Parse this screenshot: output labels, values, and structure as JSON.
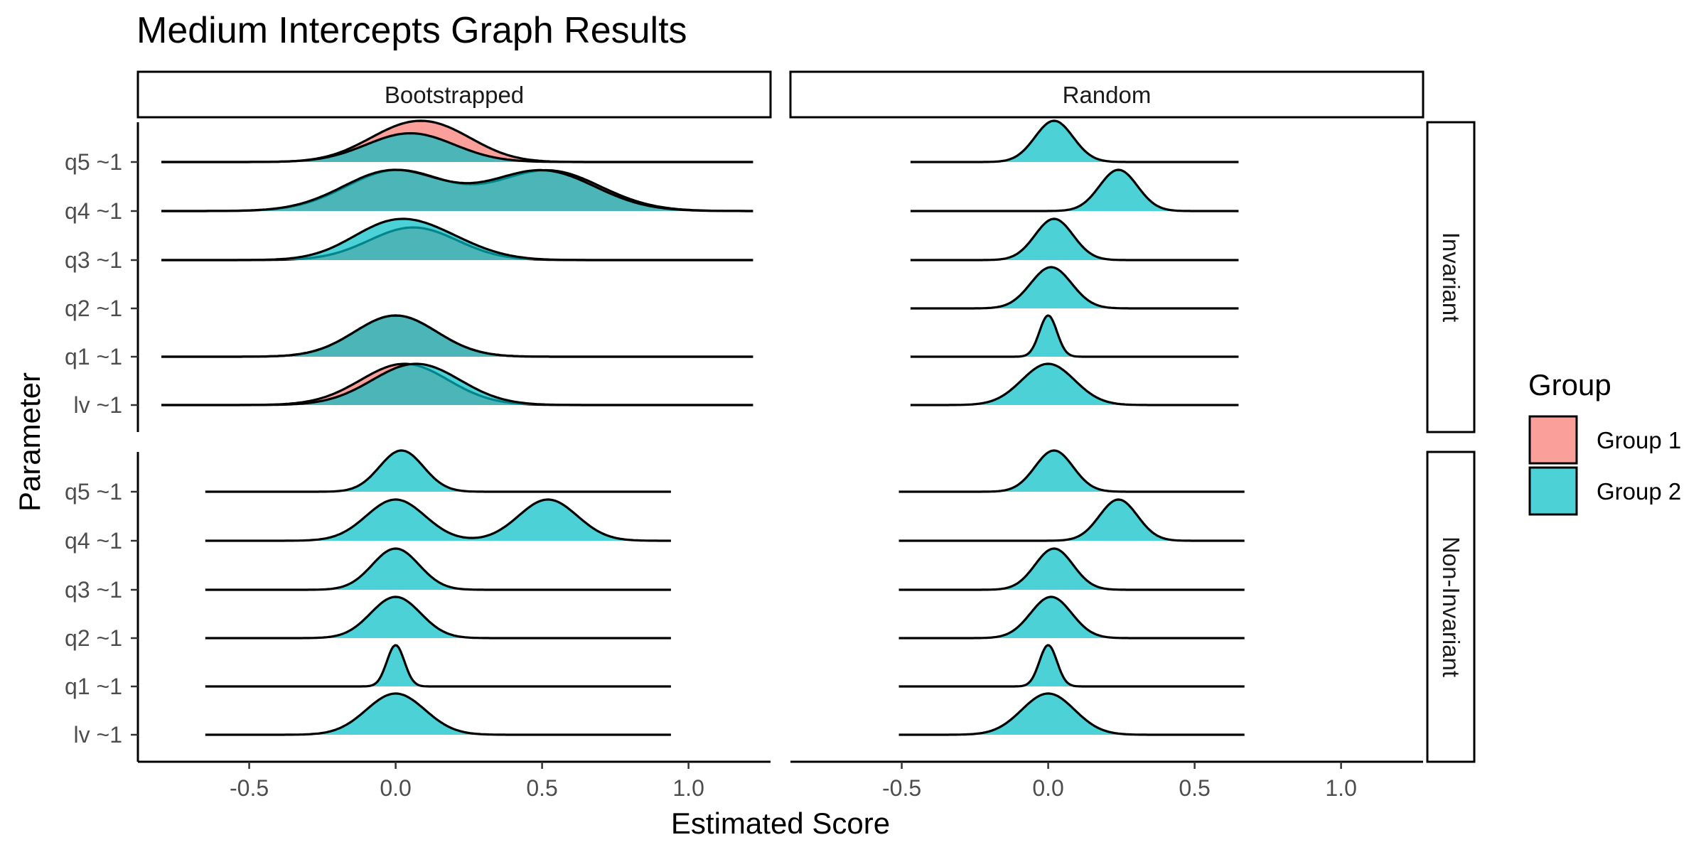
{
  "chart_data": {
    "type": "ridgeline",
    "title": "Medium Intercepts Graph Results",
    "xlabel": "Estimated Score",
    "ylabel": "Parameter",
    "xlim": [
      -0.88,
      1.28
    ],
    "x_ticks": [
      -0.5,
      0.0,
      0.5,
      1.0
    ],
    "x_tick_labels": [
      "-0.5",
      "0.0",
      "0.5",
      "1.0"
    ],
    "columns": [
      "Bootstrapped",
      "Random"
    ],
    "rows": [
      "Invariant",
      "Non-Invariant"
    ],
    "parameters": [
      "q5 ~1",
      "q4 ~1",
      "q3 ~1",
      "q2 ~1",
      "q1 ~1",
      "lv ~1"
    ],
    "legend": {
      "title": "Group",
      "entries": [
        {
          "name": "Group 1",
          "color": "#F8766D"
        },
        {
          "name": "Group 2",
          "color": "#00BFC4"
        }
      ]
    },
    "panels": [
      {
        "column": "Bootstrapped",
        "row": "Invariant",
        "ridges": [
          {
            "parameter": "q5 ~1",
            "range": [
              -0.8,
              1.22
            ],
            "groups": [
              {
                "group": "Group 1",
                "components": [
                  {
                    "w": 1,
                    "mu": 0.02,
                    "sd": 0.14
                  },
                  {
                    "w": 0.7,
                    "mu": 0.18,
                    "sd": 0.13
                  }
                ]
              },
              {
                "group": "Group 2",
                "components": [
                  {
                    "w": 1,
                    "mu": 0.05,
                    "sd": 0.15
                  }
                ]
              }
            ]
          },
          {
            "parameter": "q4 ~1",
            "range": [
              -0.8,
              1.22
            ],
            "groups": [
              {
                "group": "Group 1",
                "components": [
                  {
                    "w": 1,
                    "mu": 0.0,
                    "sd": 0.17
                  },
                  {
                    "w": 1,
                    "mu": 0.52,
                    "sd": 0.18
                  }
                ]
              },
              {
                "group": "Group 2",
                "components": [
                  {
                    "w": 1,
                    "mu": -0.01,
                    "sd": 0.17
                  },
                  {
                    "w": 1,
                    "mu": 0.5,
                    "sd": 0.18
                  }
                ]
              }
            ]
          },
          {
            "parameter": "q3 ~1",
            "range": [
              -0.8,
              1.22
            ],
            "groups": [
              {
                "group": "Group 1",
                "components": [
                  {
                    "w": 1,
                    "mu": 0.06,
                    "sd": 0.15
                  }
                ]
              },
              {
                "group": "Group 2",
                "components": [
                  {
                    "w": 1,
                    "mu": -0.02,
                    "sd": 0.14
                  },
                  {
                    "w": 0.5,
                    "mu": 0.16,
                    "sd": 0.14
                  }
                ]
              }
            ]
          },
          {
            "parameter": "q2 ~1",
            "range": null,
            "groups": []
          },
          {
            "parameter": "q1 ~1",
            "range": [
              -0.8,
              1.22
            ],
            "groups": [
              {
                "group": "Group 1",
                "components": [
                  {
                    "w": 1,
                    "mu": 0.0,
                    "sd": 0.14
                  }
                ]
              },
              {
                "group": "Group 2",
                "components": [
                  {
                    "w": 1,
                    "mu": 0.0,
                    "sd": 0.14
                  }
                ]
              }
            ]
          },
          {
            "parameter": "lv ~1",
            "range": [
              -0.8,
              1.22
            ],
            "groups": [
              {
                "group": "Group 1",
                "components": [
                  {
                    "w": 1,
                    "mu": 0.03,
                    "sd": 0.15
                  }
                ]
              },
              {
                "group": "Group 2",
                "components": [
                  {
                    "w": 1,
                    "mu": 0.07,
                    "sd": 0.15
                  }
                ]
              }
            ]
          }
        ]
      },
      {
        "column": "Random",
        "row": "Invariant",
        "ridges": [
          {
            "parameter": "q5 ~1",
            "range": [
              -0.47,
              0.65
            ],
            "groups": [
              {
                "group": "Group 2",
                "components": [
                  {
                    "w": 1,
                    "mu": 0.02,
                    "sd": 0.065
                  }
                ]
              }
            ]
          },
          {
            "parameter": "q4 ~1",
            "range": [
              -0.47,
              0.65
            ],
            "groups": [
              {
                "group": "Group 2",
                "components": [
                  {
                    "w": 1,
                    "mu": 0.24,
                    "sd": 0.065
                  }
                ]
              }
            ]
          },
          {
            "parameter": "q3 ~1",
            "range": [
              -0.47,
              0.65
            ],
            "groups": [
              {
                "group": "Group 2",
                "components": [
                  {
                    "w": 1,
                    "mu": 0.02,
                    "sd": 0.065
                  }
                ]
              }
            ]
          },
          {
            "parameter": "q2 ~1",
            "range": [
              -0.47,
              0.65
            ],
            "groups": [
              {
                "group": "Group 2",
                "components": [
                  {
                    "w": 1,
                    "mu": 0.01,
                    "sd": 0.07
                  }
                ]
              }
            ]
          },
          {
            "parameter": "q1 ~1",
            "range": [
              -0.47,
              0.65
            ],
            "groups": [
              {
                "group": "Group 2",
                "components": [
                  {
                    "w": 1,
                    "mu": 0.0,
                    "sd": 0.03
                  }
                ]
              }
            ]
          },
          {
            "parameter": "lv ~1",
            "range": [
              -0.47,
              0.65
            ],
            "groups": [
              {
                "group": "Group 2",
                "components": [
                  {
                    "w": 1,
                    "mu": 0.0,
                    "sd": 0.09
                  }
                ]
              }
            ]
          }
        ]
      },
      {
        "column": "Bootstrapped",
        "row": "Non-Invariant",
        "ridges": [
          {
            "parameter": "q5 ~1",
            "range": [
              -0.65,
              0.94
            ],
            "groups": [
              {
                "group": "Group 2",
                "components": [
                  {
                    "w": 1,
                    "mu": 0.02,
                    "sd": 0.075
                  }
                ]
              }
            ]
          },
          {
            "parameter": "q4 ~1",
            "range": [
              -0.65,
              0.94
            ],
            "groups": [
              {
                "group": "Group 2",
                "components": [
                  {
                    "w": 1,
                    "mu": 0.0,
                    "sd": 0.1
                  },
                  {
                    "w": 1,
                    "mu": 0.52,
                    "sd": 0.1
                  }
                ]
              }
            ]
          },
          {
            "parameter": "q3 ~1",
            "range": [
              -0.65,
              0.94
            ],
            "groups": [
              {
                "group": "Group 2",
                "components": [
                  {
                    "w": 1,
                    "mu": 0.0,
                    "sd": 0.08
                  }
                ]
              }
            ]
          },
          {
            "parameter": "q2 ~1",
            "range": [
              -0.65,
              0.94
            ],
            "groups": [
              {
                "group": "Group 2",
                "components": [
                  {
                    "w": 1,
                    "mu": 0.0,
                    "sd": 0.085
                  }
                ]
              }
            ]
          },
          {
            "parameter": "q1 ~1",
            "range": [
              -0.65,
              0.94
            ],
            "groups": [
              {
                "group": "Group 2",
                "components": [
                  {
                    "w": 1,
                    "mu": 0.0,
                    "sd": 0.03
                  }
                ]
              }
            ]
          },
          {
            "parameter": "lv ~1",
            "range": [
              -0.65,
              0.94
            ],
            "groups": [
              {
                "group": "Group 2",
                "components": [
                  {
                    "w": 1,
                    "mu": 0.0,
                    "sd": 0.1
                  }
                ]
              }
            ]
          }
        ]
      },
      {
        "column": "Random",
        "row": "Non-Invariant",
        "ridges": [
          {
            "parameter": "q5 ~1",
            "range": [
              -0.51,
              0.67
            ],
            "groups": [
              {
                "group": "Group 2",
                "components": [
                  {
                    "w": 1,
                    "mu": 0.02,
                    "sd": 0.065
                  }
                ]
              }
            ]
          },
          {
            "parameter": "q4 ~1",
            "range": [
              -0.51,
              0.67
            ],
            "groups": [
              {
                "group": "Group 2",
                "components": [
                  {
                    "w": 1,
                    "mu": 0.24,
                    "sd": 0.065
                  }
                ]
              }
            ]
          },
          {
            "parameter": "q3 ~1",
            "range": [
              -0.51,
              0.67
            ],
            "groups": [
              {
                "group": "Group 2",
                "components": [
                  {
                    "w": 1,
                    "mu": 0.02,
                    "sd": 0.065
                  }
                ]
              }
            ]
          },
          {
            "parameter": "q2 ~1",
            "range": [
              -0.51,
              0.67
            ],
            "groups": [
              {
                "group": "Group 2",
                "components": [
                  {
                    "w": 1,
                    "mu": 0.01,
                    "sd": 0.07
                  }
                ]
              }
            ]
          },
          {
            "parameter": "q1 ~1",
            "range": [
              -0.51,
              0.67
            ],
            "groups": [
              {
                "group": "Group 2",
                "components": [
                  {
                    "w": 1,
                    "mu": 0.0,
                    "sd": 0.03
                  }
                ]
              }
            ]
          },
          {
            "parameter": "lv ~1",
            "range": [
              -0.51,
              0.67
            ],
            "groups": [
              {
                "group": "Group 2",
                "components": [
                  {
                    "w": 1,
                    "mu": 0.0,
                    "sd": 0.09
                  }
                ]
              }
            ]
          }
        ]
      }
    ]
  }
}
